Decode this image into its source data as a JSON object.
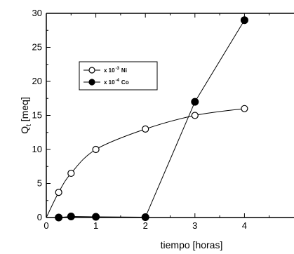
{
  "chart_data": {
    "type": "line",
    "xlabel": "tiempo [horas]",
    "ylabel_main": "Q",
    "ylabel_sub": "t",
    "ylabel_unit": " [meq]",
    "xlim": [
      0,
      5
    ],
    "ylim": [
      0,
      30
    ],
    "x_ticks": [
      0,
      1,
      2,
      3,
      4
    ],
    "y_ticks": [
      0,
      5,
      10,
      15,
      20,
      25,
      30
    ],
    "grid": false,
    "legend_position": "upper-left",
    "series": [
      {
        "name_prefix": "x 10",
        "name_exp": "-3",
        "name_suffix": "Ni",
        "marker": "open-circle",
        "x": [
          0,
          0.25,
          0.5,
          1,
          2,
          3,
          4
        ],
        "y": [
          0,
          3.7,
          6.5,
          10,
          13,
          15,
          16
        ]
      },
      {
        "name_prefix": "x 10",
        "name_exp": "-4",
        "name_suffix": "Co",
        "marker": "filled-circle",
        "x": [
          0.25,
          0.5,
          1,
          2,
          3,
          4
        ],
        "y": [
          0,
          0.15,
          0.1,
          0.05,
          17,
          29
        ]
      }
    ]
  }
}
